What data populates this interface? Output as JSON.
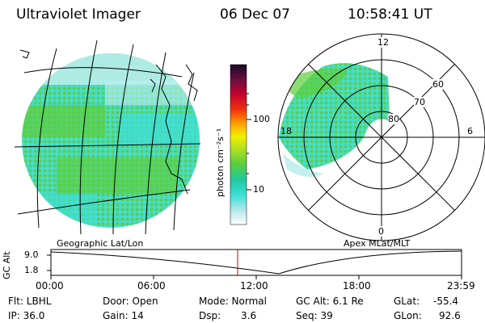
{
  "header": {
    "title": "Ultraviolet Imager",
    "date": "06 Dec 07",
    "time": "10:58:41 UT"
  },
  "colorbar": {
    "unit_label": "photon cm⁻²s⁻¹",
    "ticks": [
      "100",
      "10"
    ]
  },
  "panels": {
    "left_caption": "Geographic Lat/Lon",
    "right_caption": "Apex MLat/MLT"
  },
  "polar": {
    "mlt_labels": [
      "12",
      "18",
      "6",
      "0"
    ],
    "lat_labels": [
      "60",
      "70",
      "80"
    ]
  },
  "altitude_plot": {
    "ylabel": "GC Alt",
    "y_ticks": [
      "9.0",
      "1.8"
    ],
    "x_ticks": [
      "00:00",
      "06:00",
      "12:00",
      "18:00",
      "23:59"
    ]
  },
  "status": {
    "flt": "Flt: LBHL",
    "ip": "IP: 36.0",
    "door": "Door: Open",
    "gain": "Gain: 14",
    "mode": "Mode: Normal",
    "dsp": "Dsp:",
    "dsp_value": "3.6",
    "gc_alt": "GC Alt: 6.1 Re",
    "seq": "Seq: 39",
    "glat": "GLat:",
    "glat_value": "-55.4",
    "glon": "GLon:",
    "glon_value": "92.6"
  },
  "colors": {
    "image_green": "#5ccf3c",
    "image_cyan": "#3fe0d8",
    "image_light": "#bfeeee",
    "current_time_marker": "#cc0000"
  }
}
